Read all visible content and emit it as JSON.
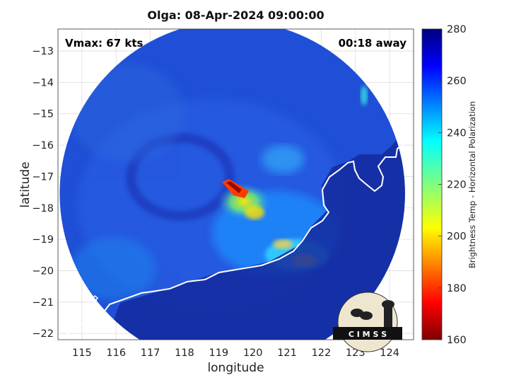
{
  "title": "Olga: 08-Apr-2024 09:00:00",
  "vmax_label": "Vmax: 67 kts",
  "time_label": "00:18 away",
  "logo_text": "C I M S S",
  "map": {
    "xlabel": "longitude",
    "ylabel": "latitude",
    "xlim": [
      114.3,
      124.7
    ],
    "ylim": [
      -22.2,
      -12.3
    ],
    "xticks": [
      115,
      116,
      117,
      118,
      119,
      120,
      121,
      122,
      123,
      124
    ],
    "yticks": [
      -13,
      -14,
      -15,
      -16,
      -17,
      -18,
      -19,
      -20,
      -21,
      -22
    ],
    "grid": true,
    "swath_center": [
      119.4,
      -17.55
    ],
    "swath_radius_deg": 5.05
  },
  "colorbar": {
    "label": "Brightness Temp - Horizontal Polarization",
    "range": [
      160,
      280
    ],
    "ticks": [
      280,
      260,
      240,
      220,
      200,
      180,
      160
    ],
    "colormap": "jet"
  },
  "colors": {
    "ocean_deep": "#1a2c9a",
    "ocean": "#1f4fd6",
    "cloud_band": "#1e90ff",
    "convection": "#4fe0e8",
    "warm_core": "#ff3b00",
    "eye_core": "#9a0a00",
    "land": "#142a9e",
    "coastline": "#ffffff"
  }
}
